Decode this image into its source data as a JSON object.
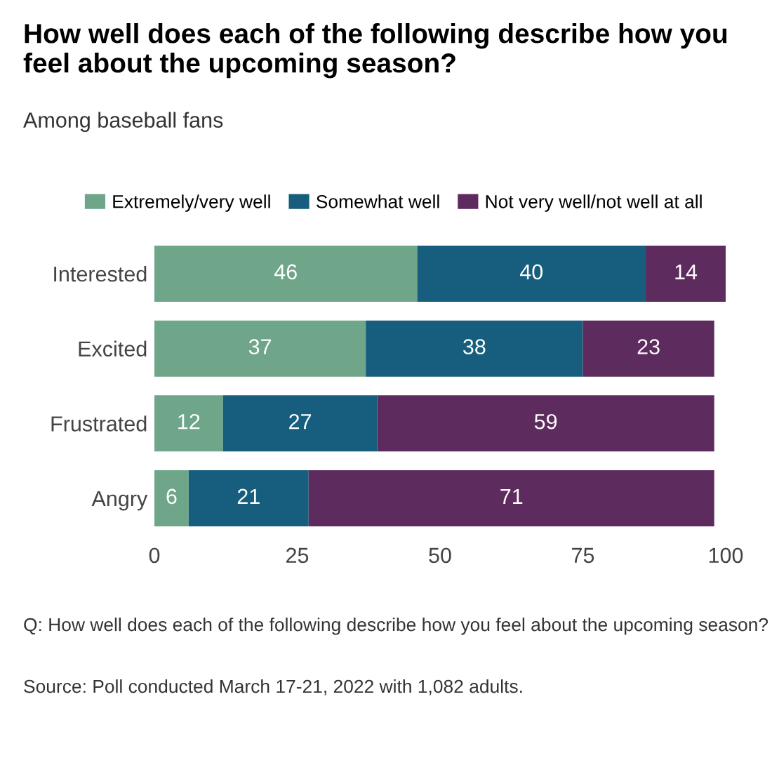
{
  "chart_data": {
    "type": "bar",
    "orientation": "horizontal",
    "stacked": true,
    "title": "How well does each of the following describe how you feel about the upcoming season?",
    "subtitle": "Among baseball fans",
    "categories": [
      "Interested",
      "Excited",
      "Frustrated",
      "Angry"
    ],
    "series": [
      {
        "name": "Extremely/very well",
        "color": "#6fa68a",
        "values": [
          46,
          37,
          12,
          6
        ]
      },
      {
        "name": "Somewhat well",
        "color": "#175e7e",
        "values": [
          40,
          38,
          27,
          21
        ]
      },
      {
        "name": "Not very well/not well at all",
        "color": "#5e2b5e",
        "values": [
          14,
          23,
          59,
          71
        ]
      }
    ],
    "xlim": [
      0,
      100
    ],
    "xticks": [
      0,
      25,
      50,
      75,
      100
    ],
    "data_labels": true,
    "grid": false,
    "legend": "top",
    "annotations": [
      "Q: How well does each of the following describe how you feel about the upcoming season?",
      "Source: Poll conducted March 17-21, 2022 with 1,082 adults."
    ]
  }
}
